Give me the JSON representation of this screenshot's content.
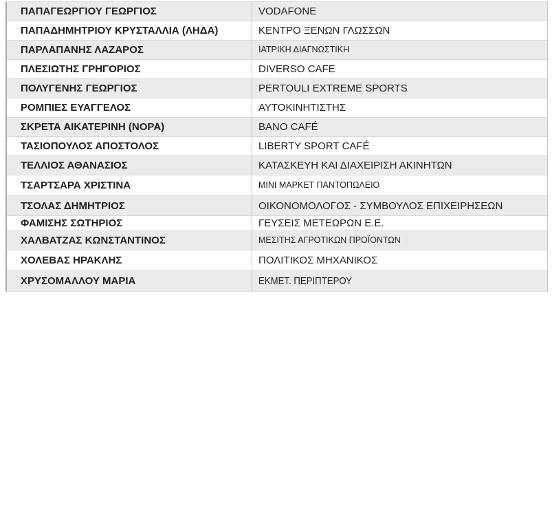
{
  "page": {
    "background": "#ffffff"
  },
  "colors": {
    "striped_row": "#ebebeb",
    "plain_row": "#ffffff",
    "border_horizontal": "#d9d9d9",
    "border_vertical": "#c6c6c6",
    "border_vertical_strong": "#a8a8a8",
    "text": "#1f1f1f"
  },
  "table": {
    "columns": [
      "name",
      "business"
    ],
    "rows": [
      {
        "name": "ΠΑΠΑΓΕΩΡΓΙΟΥ ΓΕΩΡΓΙΟΣ",
        "business": "VODAFONE"
      },
      {
        "name": "ΠΑΠΑΔΗΜΗΤΡΙΟΥ ΚΡΥΣΤΑΛΛΙΑ (ΛΗΔΑ)",
        "business": "ΚΕΝΤΡΟ ΞΕΝΩΝ ΓΛΩΣΣΩΝ"
      },
      {
        "name": "ΠΑΡΛΑΠΑΝΗΣ ΛΑΖΑΡΟΣ",
        "business": "ΙΑΤΡΙΚΗ ΔΙΑΓΝΩΣΤΙΚΗ"
      },
      {
        "name": "ΠΛΕΣΙΩΤΗΣ ΓΡΗΓΟΡΙΟΣ",
        "business": "DIVERSO CAFE"
      },
      {
        "name": "ΠΟΛΥΓΕΝΗΣ ΓΕΩΡΓΙΟΣ",
        "business": "PERTOULI EXTREME SPORTS"
      },
      {
        "name": "ΡΟΜΠΙΕΣ ΕΥΑΓΓΕΛΟΣ",
        "business": "ΑΥΤΟΚΙΝΗΤΙΣΤΗΣ"
      },
      {
        "name": "ΣΚΡΕΤΑ ΑΙΚΑΤΕΡΙΝΗ (ΝΟΡΑ)",
        "business": "BANO CAFÉ"
      },
      {
        "name": "ΤΑΣΙΟΠΟΥΛΟΣ ΑΠΟΣΤΟΛΟΣ",
        "business": "LIBERTY SPORT CAFÉ"
      },
      {
        "name": "ΤΕΛΛΙΟΣ ΑΘΑΝΑΣΙΟΣ",
        "business": "ΚΑΤΑΣΚΕΥΗ ΚΑΙ ΔΙΑΧΕΙΡΙΣΗ ΑΚΙΝΗΤΩΝ"
      },
      {
        "name": "ΤΣΑΡΤΣΑΡΑ ΧΡΙΣΤΙΝΑ",
        "business": "ΜΙΝΙ ΜΑΡΚΕΤ ΠΑΝΤΟΠΩΛΕΙΟ"
      },
      {
        "name": "ΤΣΟΛΑΣ ΔΗΜΗΤΡΙΟΣ",
        "business": "ΟΙΚΟΝΟΜΟΛΟΓΟΣ - ΣΥΜΒΟΥΛΟΣ ΕΠΙΧΕΙΡΗΣΕΩΝ"
      },
      {
        "name": "ΦΑΜΙΣΗΣ ΣΩΤΗΡΙΟΣ",
        "business": "ΓΕΥΣΕΙΣ ΜΕΤΕΩΡΩΝ Ε.Ε."
      },
      {
        "name": "ΧΑΛΒΑΤΖΑΣ ΚΩΝΣΤΑΝΤΙΝΟΣ",
        "business": "ΜΕΣΙΤΗΣ ΑΓΡΟΤΙΚΩΝ ΠΡΟΪΟΝΤΩΝ"
      },
      {
        "name": "ΧΟΛΕΒΑΣ ΗΡΑΚΛΗΣ",
        "business": "ΠΟΛΙΤΙΚΟΣ ΜΗΧΑΝΙΚΟΣ"
      },
      {
        "name": "ΧΡΥΣΟΜΑΛΛΟΥ ΜΑΡΙΑ",
        "business": "ΕΚΜΕΤ. ΠΕΡΙΠΤΕΡΟΥ"
      }
    ]
  }
}
